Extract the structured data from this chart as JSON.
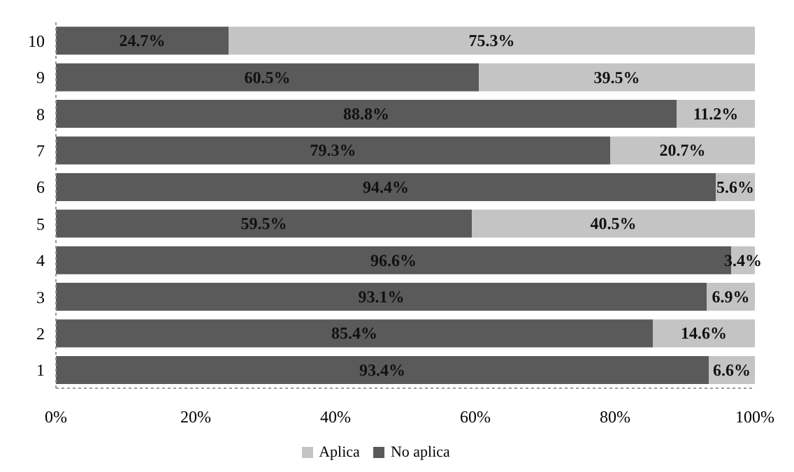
{
  "chart_data": {
    "type": "bar",
    "orientation": "horizontal",
    "stacked": true,
    "categories": [
      "10",
      "9",
      "8",
      "7",
      "6",
      "5",
      "4",
      "3",
      "2",
      "1"
    ],
    "series": [
      {
        "name": "No aplica",
        "color": "#5a5a5a",
        "values": [
          24.7,
          60.5,
          88.8,
          79.3,
          94.4,
          59.5,
          96.6,
          93.1,
          85.4,
          93.4
        ],
        "value_labels": [
          "24.7%",
          "60.5%",
          "88.8%",
          "79.3%",
          "94.4%",
          "59.5%",
          "96.6%",
          "93.1%",
          "85.4%",
          "93.4%"
        ]
      },
      {
        "name": "Aplica",
        "color": "#c4c4c4",
        "values": [
          75.3,
          39.5,
          11.2,
          20.7,
          5.6,
          40.5,
          3.4,
          6.9,
          14.6,
          6.6
        ],
        "value_labels": [
          "75.3%",
          "39.5%",
          "11.2%",
          "20.7%",
          "5.6%",
          "40.5%",
          "3.4%",
          "6.9%",
          "14.6%",
          "6.6%"
        ]
      }
    ],
    "xlim": [
      0,
      100
    ],
    "xticks": [
      {
        "value": 0,
        "label": "0%"
      },
      {
        "value": 20,
        "label": "20%"
      },
      {
        "value": 40,
        "label": "40%"
      },
      {
        "value": 60,
        "label": "60%"
      },
      {
        "value": 80,
        "label": "80%"
      },
      {
        "value": 100,
        "label": "100%"
      }
    ],
    "legend": "bottom"
  }
}
